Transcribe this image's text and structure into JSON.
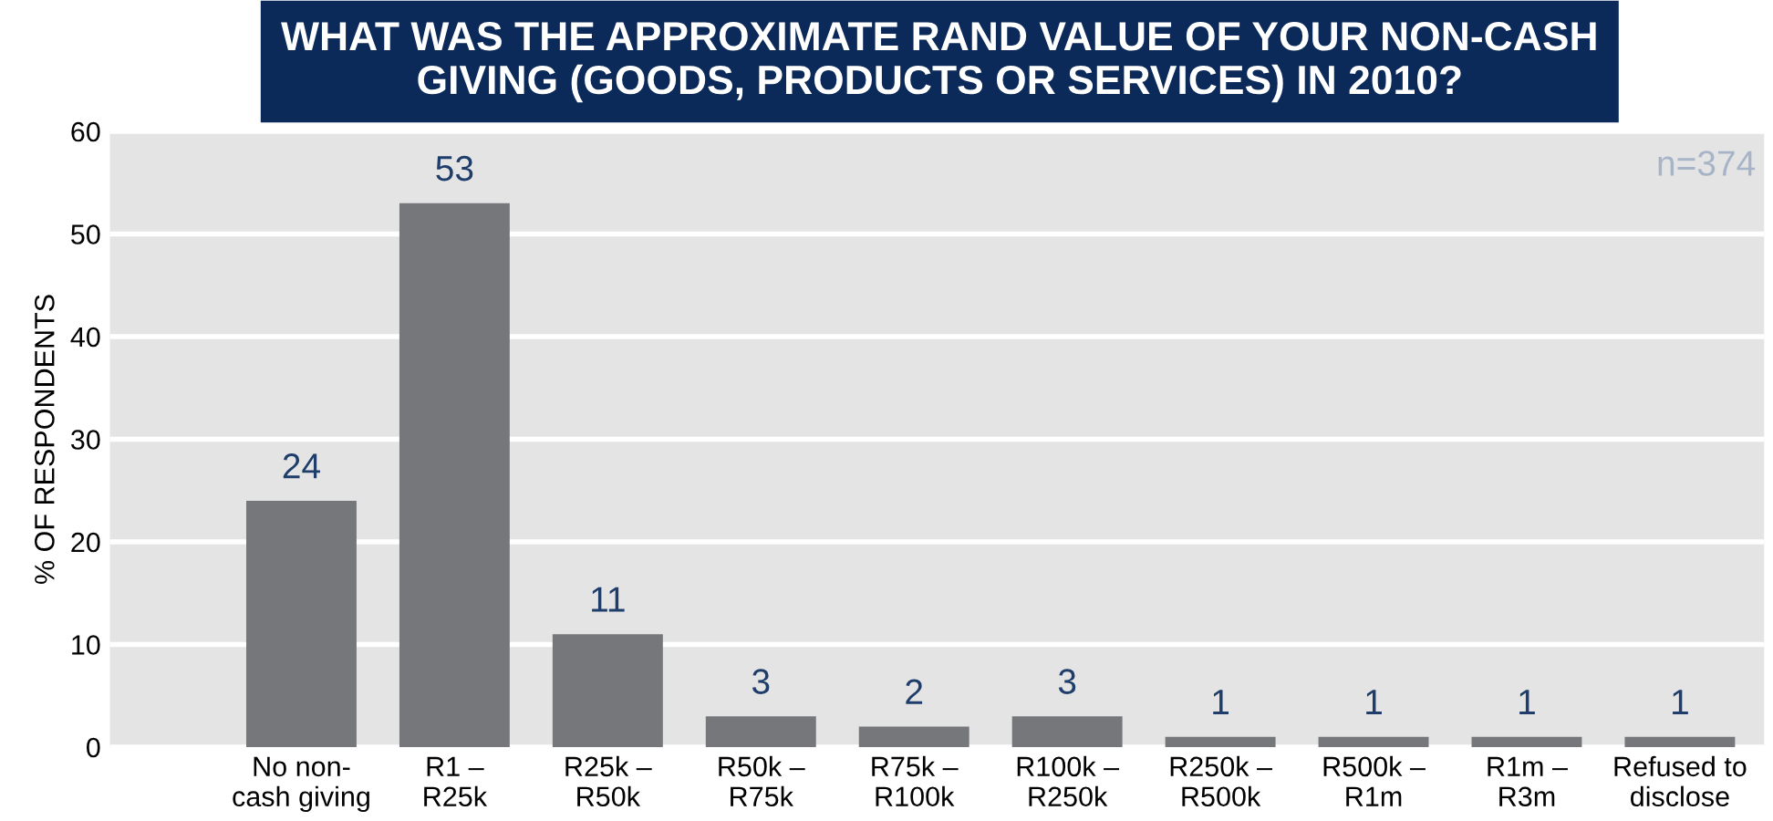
{
  "chart_data": {
    "type": "bar",
    "title": "WHAT WAS THE APPROXIMATE RAND VALUE OF YOUR NON-CASH\nGIVING (GOODS, PRODUCTS OR SERVICES) IN 2010?",
    "ylabel": "% OF RESPONDENTS",
    "categories": [
      "No non-\ncash giving",
      "R1 –\nR25k",
      "R25k –\nR50k",
      "R50k –\nR75k",
      "R75k –\nR100k",
      "R100k –\nR250k",
      "R250k –\nR500k",
      "R500k –\nR1m",
      "R1m –\nR3m",
      "Refused to\ndisclose"
    ],
    "values": [
      24,
      53,
      11,
      3,
      2,
      3,
      1,
      1,
      1,
      1
    ],
    "color": "#76777b",
    "ylim": [
      0,
      60
    ],
    "yticks": [
      0,
      10,
      20,
      30,
      40,
      50,
      60
    ],
    "grid": "y",
    "data_labels": true,
    "annotations": [
      "n=374"
    ]
  }
}
